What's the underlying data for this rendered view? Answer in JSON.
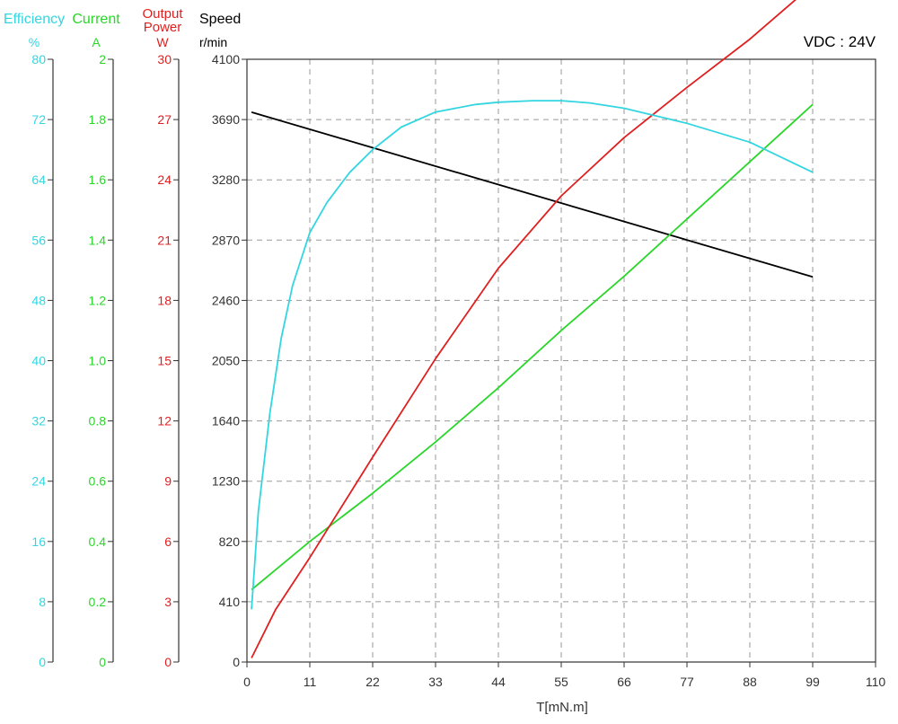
{
  "chart_data": {
    "type": "line",
    "annotation": "VDC : 24V",
    "xlabel": "T[mN.m]",
    "xlim": [
      0,
      110
    ],
    "x_ticks": [
      "0",
      "11",
      "22",
      "33",
      "44",
      "55",
      "66",
      "77",
      "88",
      "99",
      "110"
    ],
    "axes": [
      {
        "id": "efficiency",
        "title": "Efficiency",
        "unit": "%",
        "color": "#33d6e0",
        "ylim": [
          0,
          80
        ],
        "ticks": [
          "0",
          "8",
          "16",
          "24",
          "32",
          "40",
          "48",
          "56",
          "64",
          "72",
          "80"
        ]
      },
      {
        "id": "current",
        "title": "Current",
        "unit": "A",
        "color": "#2bd62b",
        "ylim": [
          0,
          2
        ],
        "ticks": [
          "0",
          "0.2",
          "0.4",
          "0.6",
          "0.8",
          "1.0",
          "1.2",
          "1.4",
          "1.6",
          "1.8",
          "2"
        ]
      },
      {
        "id": "power",
        "title": "Output Power",
        "unit": "W",
        "color": "#e02020",
        "ylim": [
          0,
          30
        ],
        "ticks": [
          "0",
          "3",
          "6",
          "9",
          "12",
          "15",
          "18",
          "21",
          "24",
          "27",
          "30"
        ]
      },
      {
        "id": "speed",
        "title": "Speed",
        "unit": "r/min",
        "color": "#000000",
        "ylim": [
          0,
          4100
        ],
        "ticks": [
          "0",
          "410",
          "820",
          "1230",
          "1640",
          "2050",
          "2460",
          "2870",
          "3280",
          "3690",
          "4100"
        ]
      }
    ],
    "series": [
      {
        "axis": "speed",
        "color": "#000000",
        "x": [
          0,
          99
        ],
        "y": [
          3740,
          2620
        ]
      },
      {
        "axis": "current",
        "color": "#2bd62b",
        "x": [
          0,
          11,
          22,
          33,
          44,
          55,
          66,
          77,
          88,
          99
        ],
        "y": [
          0.24,
          0.4,
          0.56,
          0.73,
          0.91,
          1.1,
          1.28,
          1.47,
          1.66,
          1.85
        ]
      },
      {
        "axis": "power",
        "color": "#e02020",
        "x": [
          0,
          5,
          11,
          22,
          33,
          44,
          55,
          66,
          77,
          88,
          99
        ],
        "y": [
          0.2,
          2.6,
          5.2,
          10.2,
          15.1,
          19.6,
          23.2,
          26.1,
          28.6,
          31.0,
          33.7
        ]
      },
      {
        "axis": "efficiency",
        "color": "#33d6e0",
        "x": [
          0,
          2,
          4,
          6,
          8,
          11,
          14,
          18,
          22,
          27,
          33,
          40,
          44,
          50,
          55,
          60,
          66,
          77,
          88,
          99
        ],
        "y": [
          7,
          20,
          33,
          43,
          50,
          57,
          61,
          65,
          68,
          71,
          73,
          74,
          74.3,
          74.5,
          74.5,
          74.2,
          73.5,
          71.5,
          69,
          65
        ]
      }
    ]
  }
}
